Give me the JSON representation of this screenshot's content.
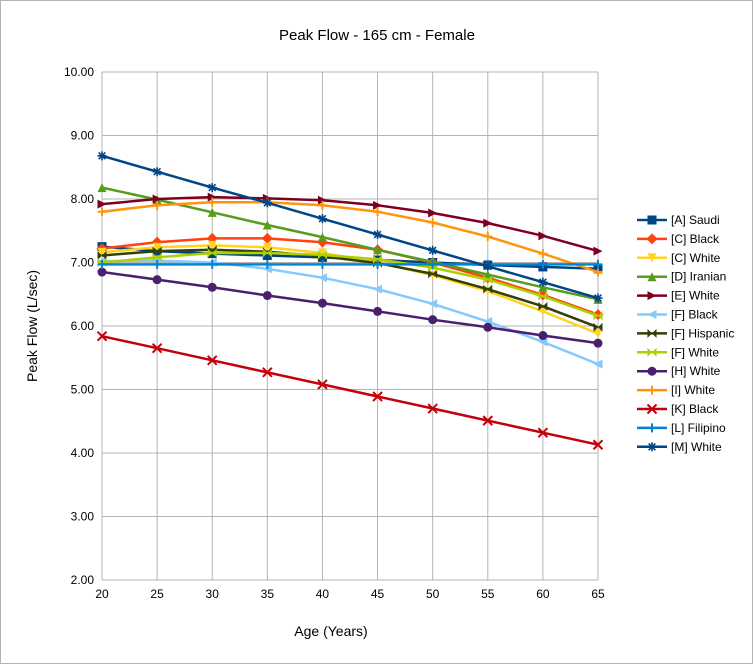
{
  "chart_data": {
    "type": "line",
    "title": "Peak Flow - 165 cm - Female",
    "xlabel": "Age (Years)",
    "ylabel": "Peak Flow (L/sec)",
    "x": [
      20,
      25,
      30,
      35,
      40,
      45,
      50,
      55,
      60,
      65
    ],
    "xlim": [
      20,
      65
    ],
    "ylim": [
      2,
      10
    ],
    "yticks": [
      2,
      3,
      4,
      5,
      6,
      7,
      8,
      9,
      10
    ],
    "ytick_labels": [
      "2.00",
      "3.00",
      "4.00",
      "5.00",
      "6.00",
      "7.00",
      "8.00",
      "9.00",
      "10.00"
    ],
    "xtick_labels": [
      "20",
      "25",
      "30",
      "35",
      "40",
      "45",
      "50",
      "55",
      "60",
      "65"
    ],
    "grid": true,
    "legend_position": "right",
    "series": [
      {
        "name": "[A] Saudi",
        "color": "#004586",
        "marker": "square",
        "values": [
          7.25,
          7.18,
          7.14,
          7.11,
          7.08,
          7.04,
          7.0,
          6.96,
          6.93,
          6.9
        ]
      },
      {
        "name": "[C] Black",
        "color": "#ff420e",
        "marker": "diamond",
        "values": [
          7.22,
          7.32,
          7.38,
          7.38,
          7.32,
          7.2,
          7.0,
          6.76,
          6.49,
          6.18
        ]
      },
      {
        "name": "[C] White",
        "color": "#ffd320",
        "marker": "triangle-down",
        "values": [
          7.16,
          7.24,
          7.27,
          7.24,
          7.15,
          7.0,
          6.8,
          6.55,
          6.23,
          5.88
        ]
      },
      {
        "name": "[D] Iranian",
        "color": "#579d1c",
        "marker": "triangle-up",
        "values": [
          8.18,
          7.99,
          7.79,
          7.59,
          7.4,
          7.2,
          7.01,
          6.81,
          6.61,
          6.42
        ]
      },
      {
        "name": "[E] White",
        "color": "#7e0021",
        "marker": "triangle-right",
        "values": [
          7.92,
          8.0,
          8.03,
          8.01,
          7.98,
          7.9,
          7.78,
          7.62,
          7.42,
          7.18
        ]
      },
      {
        "name": "[F] Black",
        "color": "#83caff",
        "marker": "triangle-left",
        "values": [
          7.02,
          7.03,
          7.0,
          6.9,
          6.76,
          6.58,
          6.35,
          6.07,
          5.75,
          5.4
        ]
      },
      {
        "name": "[F] Hispanic",
        "color": "#314004",
        "marker": "bowtie",
        "values": [
          7.11,
          7.18,
          7.2,
          7.17,
          7.1,
          6.99,
          6.82,
          6.58,
          6.31,
          5.98
        ]
      },
      {
        "name": "[F] White",
        "color": "#aecf00",
        "marker": "bowtie",
        "values": [
          7.0,
          7.08,
          7.15,
          7.15,
          7.12,
          7.05,
          6.92,
          6.73,
          6.47,
          6.16
        ]
      },
      {
        "name": "[H] White",
        "color": "#4b1f6f",
        "marker": "circle",
        "values": [
          6.85,
          6.73,
          6.61,
          6.48,
          6.36,
          6.23,
          6.1,
          5.98,
          5.85,
          5.73
        ]
      },
      {
        "name": "[I] White",
        "color": "#ff950e",
        "marker": "plus",
        "values": [
          7.8,
          7.9,
          7.95,
          7.95,
          7.9,
          7.8,
          7.63,
          7.41,
          7.14,
          6.85
        ]
      },
      {
        "name": "[K] Black",
        "color": "#c5000b",
        "marker": "x",
        "values": [
          5.84,
          5.65,
          5.46,
          5.27,
          5.08,
          4.89,
          4.7,
          4.51,
          4.32,
          4.13
        ]
      },
      {
        "name": "[L] Filipino",
        "color": "#0084d1",
        "marker": "plus",
        "values": [
          6.97,
          6.97,
          6.97,
          6.97,
          6.97,
          6.97,
          6.97,
          6.97,
          6.97,
          6.97
        ]
      },
      {
        "name": "[M] White",
        "color": "#004586",
        "marker": "asterisk",
        "values": [
          8.68,
          8.43,
          8.18,
          7.94,
          7.69,
          7.44,
          7.19,
          6.94,
          6.69,
          6.44
        ]
      }
    ]
  }
}
